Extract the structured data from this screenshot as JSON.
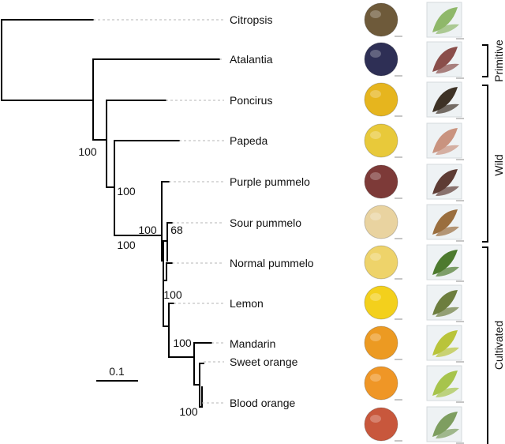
{
  "taxa": [
    {
      "name": "Citropsis",
      "fruit": "#6e5a3a",
      "leaf": "#8fb86a"
    },
    {
      "name": "Atalantia",
      "fruit": "#2e2f55",
      "leaf": "#8a4e4a"
    },
    {
      "name": "Poncirus",
      "fruit": "#e6b51e",
      "leaf": "#3e3226"
    },
    {
      "name": "Papeda",
      "fruit": "#e8c93a",
      "leaf": "#c9937f"
    },
    {
      "name": "Purple pummelo",
      "fruit": "#7d3a38",
      "leaf": "#5e3c34"
    },
    {
      "name": "Sour pummelo",
      "fruit": "#e9d3a0",
      "leaf": "#9a6e3e"
    },
    {
      "name": "Normal pummelo",
      "fruit": "#eed36a",
      "leaf": "#4d7a2e"
    },
    {
      "name": "Lemon",
      "fruit": "#f3d01c",
      "leaf": "#6d7e3e"
    },
    {
      "name": "Mandarin",
      "fruit": "#ec9a22",
      "leaf": "#b9c43a"
    },
    {
      "name": "Sweet orange",
      "fruit": "#ef9626",
      "leaf": "#a7c44c"
    },
    {
      "name": "Blood orange",
      "fruit": "#c8573c",
      "leaf": "#7e9e60"
    }
  ],
  "support_values": [
    "100",
    "100",
    "100",
    "100",
    "68",
    "100",
    "100",
    "100"
  ],
  "groups": [
    "Primitive",
    "Wild",
    "Cultivated"
  ],
  "scale_label": "0.1"
}
